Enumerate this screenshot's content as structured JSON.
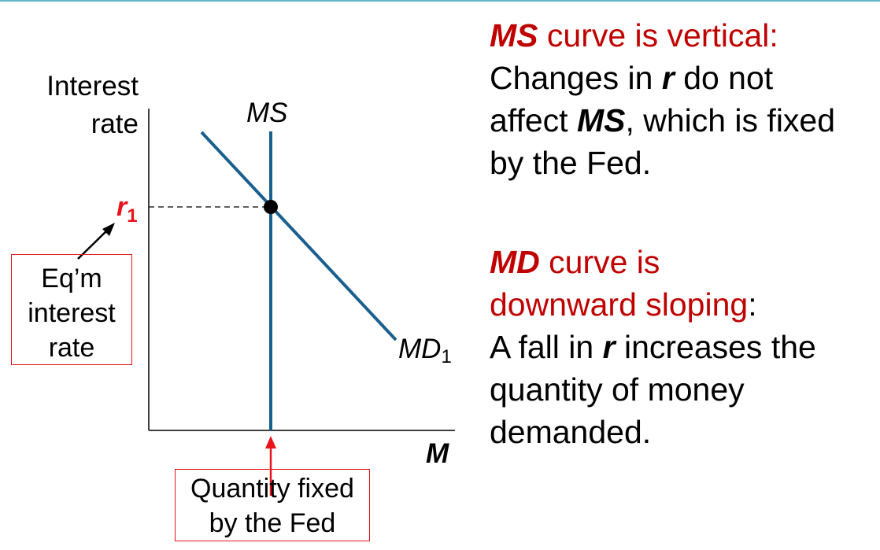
{
  "diagram": {
    "y_axis_label": [
      "Interest",
      "rate"
    ],
    "x_axis_label": "M",
    "ms_curve_label": "MS",
    "md_curve_label": "MD",
    "md_curve_subscript": "1",
    "equilibrium_rate_label": "r",
    "equilibrium_rate_subscript": "1",
    "equilibrium_box_lines": [
      "Eq’m",
      "interest",
      "rate"
    ],
    "fixed_quantity_box_lines": [
      "Quantity fixed",
      "by the Fed"
    ],
    "colors": {
      "curve": "#1a5f8e",
      "callout": "#e8131b",
      "heading": "#c00000",
      "axis": "#000000"
    }
  },
  "notes": {
    "ms": {
      "heading_em": "MS",
      "heading_rest": " curve is vertical:",
      "line1_pre": "Changes in ",
      "line1_em": "r",
      "line1_post": " do not",
      "line2_pre": "affect ",
      "line2_em": "MS",
      "line2_post": ", which is fixed",
      "line3": "by the Fed."
    },
    "md": {
      "heading_em": "MD",
      "heading_rest": " curve is",
      "heading_line2": "downward sloping",
      "heading_colon": ":",
      "line1_pre": "A fall in ",
      "line1_em": "r",
      "line1_post": " increases the",
      "line2": "quantity of money",
      "line3": "demanded."
    }
  }
}
